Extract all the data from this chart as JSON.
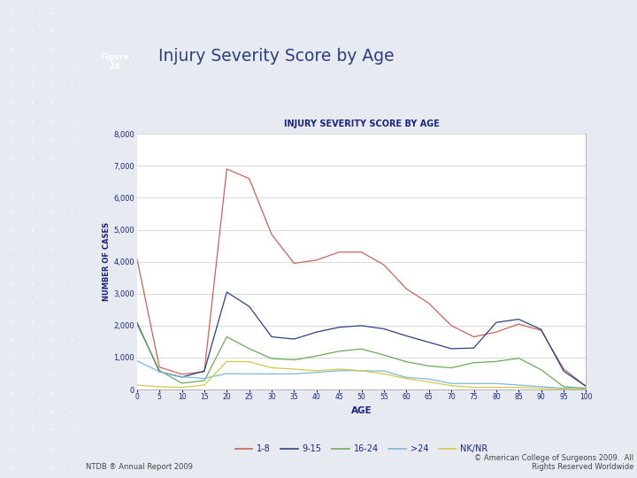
{
  "title": "INJURY SEVERITY SCORE BY AGE",
  "heading": "Injury Severity Score by Age",
  "figure_label": "Figure\n24",
  "xlabel": "AGE",
  "ylabel": "NUMBER OF CASES",
  "ylim": [
    0,
    8000
  ],
  "yticks": [
    0,
    1000,
    2000,
    3000,
    4000,
    5000,
    6000,
    7000,
    8000
  ],
  "ages": [
    0,
    5,
    10,
    15,
    20,
    25,
    30,
    35,
    40,
    45,
    50,
    55,
    60,
    65,
    70,
    75,
    80,
    85,
    90,
    95,
    100
  ],
  "series_1_8": [
    4100,
    700,
    480,
    560,
    6900,
    6600,
    4850,
    3950,
    4050,
    4300,
    4300,
    3900,
    3150,
    2700,
    2000,
    1650,
    1800,
    2050,
    1850,
    650,
    100
  ],
  "series_9_15": [
    2100,
    560,
    390,
    580,
    3050,
    2600,
    1650,
    1580,
    1800,
    1950,
    2000,
    1900,
    1680,
    1480,
    1280,
    1300,
    2100,
    2200,
    1880,
    580,
    100
  ],
  "series_16_24": [
    2050,
    600,
    200,
    280,
    1650,
    1280,
    970,
    930,
    1050,
    1200,
    1270,
    1080,
    870,
    740,
    680,
    840,
    880,
    980,
    620,
    90,
    40
  ],
  "series_gt24": [
    900,
    560,
    400,
    350,
    500,
    490,
    490,
    490,
    540,
    590,
    590,
    580,
    380,
    330,
    190,
    190,
    190,
    140,
    90,
    40,
    15
  ],
  "series_nknr": [
    140,
    90,
    70,
    140,
    880,
    870,
    680,
    640,
    590,
    640,
    590,
    490,
    340,
    240,
    120,
    70,
    70,
    70,
    40,
    15,
    5
  ],
  "color_1_8": "#c8645a",
  "color_9_15": "#2e4080",
  "color_16_24": "#6aaa5a",
  "color_gt24": "#7ab8d8",
  "color_nknr": "#d4c84a",
  "left_panel_color": "#b4bdd0",
  "left_panel_bg": "#dde0ea",
  "header_box_color": "#2e4080",
  "grid_color": "#cccccc",
  "title_color": "#1a237e",
  "chart_border": "#aaaaaa",
  "footer_left": "NTDB ® Annual Report 2009",
  "footer_right": "© American College of Surgeons 2009.  All\nRights Reserved Worldwide"
}
